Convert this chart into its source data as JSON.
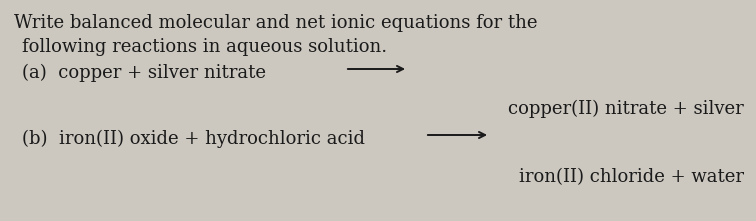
{
  "bg_color": "#ccc8c0",
  "text_color": "#1a1a1a",
  "font_size": 13.0,
  "line1": "Write balanced molecular and net ionic equations for the",
  "line2": "following reactions in aqueous solution.",
  "a_label": "(a)  copper + silver nitrate",
  "a_products": "copper(II) nitrate + silver",
  "b_label": "(b)  iron(II) oxide + hydrochloric acid",
  "b_products": "iron(II) chloride + water",
  "arrow_color": "#1a1a1a",
  "figwidth": 7.56,
  "figheight": 2.21,
  "dpi": 100
}
